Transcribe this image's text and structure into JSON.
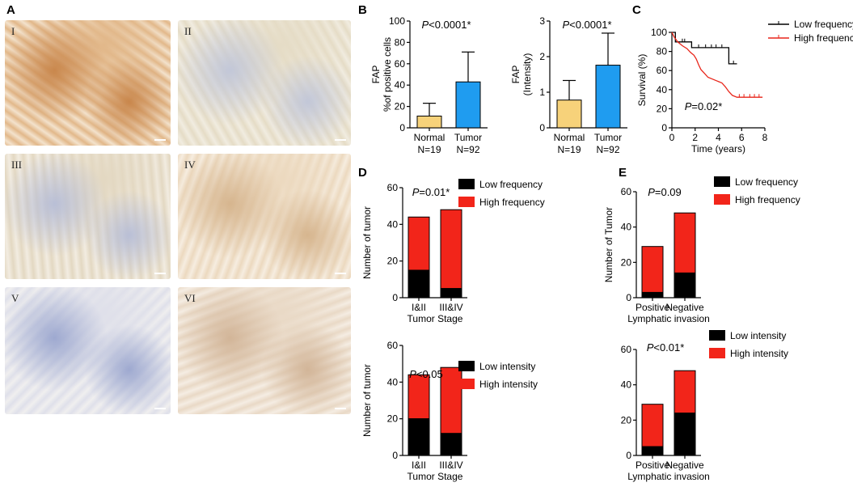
{
  "panel_labels": [
    "A",
    "B",
    "C",
    "D",
    "E"
  ],
  "micrographs": [
    {
      "label": "I",
      "tone": [
        "#c9874c",
        "#e2b88a",
        "#f3e2cc"
      ]
    },
    {
      "label": "II",
      "tone": [
        "#c2c7d8",
        "#e5dcc6",
        "#f1ece0"
      ]
    },
    {
      "label": "III",
      "tone": [
        "#b9bfd6",
        "#e3d8c2",
        "#f2ece1"
      ]
    },
    {
      "label": "IV",
      "tone": [
        "#d6b58e",
        "#ecd9bf",
        "#f6ede0"
      ]
    },
    {
      "label": "V",
      "tone": [
        "#9ea9d0",
        "#dfe0ea",
        "#f0efef"
      ]
    },
    {
      "label": "VI",
      "tone": [
        "#d2b598",
        "#e9d9c6",
        "#f5ede3"
      ]
    }
  ],
  "colors": {
    "normal": "#f7d27a",
    "tumor": "#1f9cf0",
    "low": "#000000",
    "high": "#f2251a",
    "survival_low": "#000000",
    "survival_high": "#e8251a"
  },
  "chart_data": [
    {
      "id": "B1",
      "type": "bar",
      "categories": [
        "Normal",
        "Tumor"
      ],
      "sublabels": [
        "N=19",
        "N=92"
      ],
      "values": [
        11,
        43
      ],
      "errors": [
        12,
        28
      ],
      "ylabel": [
        "FAP",
        "%of positive cells"
      ],
      "ylim": [
        0,
        100
      ],
      "yticks": [
        0,
        20,
        40,
        60,
        80,
        100
      ],
      "annotation": "P<0.0001*"
    },
    {
      "id": "B2",
      "type": "bar",
      "categories": [
        "Normal",
        "Tumor"
      ],
      "sublabels": [
        "N=19",
        "N=92"
      ],
      "values": [
        0.78,
        1.76
      ],
      "errors": [
        0.55,
        0.9
      ],
      "ylabel": [
        "FAP",
        "(Intensity)"
      ],
      "ylim": [
        0,
        3
      ],
      "yticks": [
        0,
        1,
        2,
        3
      ],
      "annotation": "P<0.0001*"
    },
    {
      "id": "C",
      "type": "line",
      "xlabel": "Time (years)",
      "ylabel": "Survival (%)",
      "xlim": [
        0,
        8
      ],
      "ylim": [
        0,
        100
      ],
      "xticks": [
        0,
        2,
        4,
        6,
        8
      ],
      "yticks": [
        0,
        20,
        40,
        60,
        80,
        100
      ],
      "annotation": "P=0.02*",
      "legend": [
        "Low frequency",
        "High frequency"
      ],
      "series": [
        {
          "name": "Low frequency",
          "points": [
            [
              0,
              100
            ],
            [
              0.3,
              100
            ],
            [
              0.3,
              90
            ],
            [
              1.7,
              90
            ],
            [
              1.7,
              84
            ],
            [
              4.9,
              84
            ],
            [
              4.9,
              67
            ],
            [
              5.6,
              67
            ]
          ]
        },
        {
          "name": "High frequency",
          "points": [
            [
              0,
              100
            ],
            [
              0.2,
              95
            ],
            [
              0.5,
              90
            ],
            [
              0.9,
              86
            ],
            [
              1.3,
              83
            ],
            [
              1.6,
              79
            ],
            [
              1.9,
              76
            ],
            [
              2.1,
              72
            ],
            [
              2.3,
              66
            ],
            [
              2.5,
              61
            ],
            [
              2.8,
              57
            ],
            [
              3.1,
              53
            ],
            [
              3.5,
              51
            ],
            [
              3.9,
              49
            ],
            [
              4.3,
              47
            ],
            [
              4.6,
              43
            ],
            [
              4.9,
              38
            ],
            [
              5.2,
              34
            ],
            [
              5.6,
              32
            ],
            [
              7.8,
              32
            ]
          ]
        }
      ],
      "censor_low": [
        0.9,
        1.1,
        2.3,
        2.9,
        3.4,
        3.8,
        4.3,
        5.3
      ],
      "censor_high": [
        5.8,
        6.2,
        6.7,
        7.1,
        7.5
      ]
    },
    {
      "id": "D1",
      "type": "bar",
      "categories": [
        "I&II",
        "III&IV"
      ],
      "xlabel": "Tumor Stage",
      "ylabel": "Number of tumor",
      "ylim": [
        0,
        60
      ],
      "yticks": [
        0,
        20,
        40,
        60
      ],
      "annotation": "P=0.01*",
      "series": [
        {
          "name": "Low frequency",
          "values": [
            15,
            5
          ]
        },
        {
          "name": "High frequency",
          "values": [
            29,
            43
          ]
        }
      ]
    },
    {
      "id": "D2",
      "type": "bar",
      "categories": [
        "I&II",
        "III&IV"
      ],
      "xlabel": "Tumor Stage",
      "ylabel": "Number of tumor",
      "ylim": [
        0,
        60
      ],
      "yticks": [
        0,
        20,
        40,
        60
      ],
      "annotation": "P<0.05",
      "series": [
        {
          "name": "Low intensity",
          "values": [
            20,
            12
          ]
        },
        {
          "name": "High intensity",
          "values": [
            24,
            36
          ]
        }
      ]
    },
    {
      "id": "E1",
      "type": "bar",
      "categories": [
        "Positive",
        "Negative"
      ],
      "xlabel": "Lymphatic invasion",
      "ylabel": "Number of Tumor",
      "ylim": [
        0,
        60
      ],
      "yticks": [
        0,
        20,
        40,
        60
      ],
      "annotation": "P=0.09",
      "series": [
        {
          "name": "Low frequency",
          "values": [
            3,
            14
          ]
        },
        {
          "name": "High frequency",
          "values": [
            26,
            34
          ]
        }
      ]
    },
    {
      "id": "E2",
      "type": "bar",
      "categories": [
        "Positive",
        "Negative"
      ],
      "xlabel": "Lymphatic invasion",
      "ylabel": "",
      "ylim": [
        0,
        60
      ],
      "yticks": [
        0,
        20,
        40,
        60
      ],
      "annotation": "P<0.01*",
      "series": [
        {
          "name": "Low intensity",
          "values": [
            5,
            24
          ]
        },
        {
          "name": "High intensity",
          "values": [
            24,
            24
          ]
        }
      ]
    }
  ]
}
